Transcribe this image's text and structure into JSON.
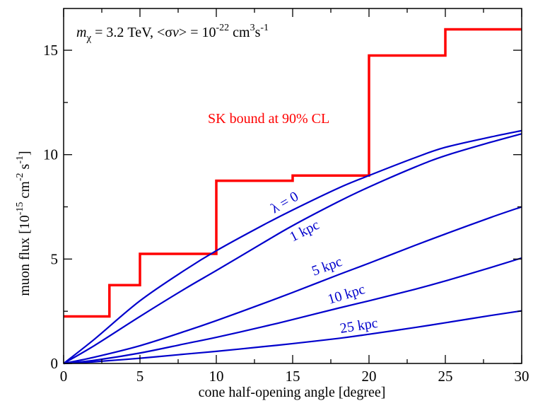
{
  "chart_data": {
    "type": "line",
    "title": "",
    "xlabel": "cone half-opening angle [degree]",
    "ylabel_main": "muon flux  [10",
    "ylabel_exp1": "-15",
    "ylabel_mid": " cm",
    "ylabel_exp2": "-2",
    "ylabel_s": " s",
    "ylabel_exp3": "-1",
    "ylabel_end": "]",
    "xlim": [
      0,
      30
    ],
    "ylim": [
      0,
      17
    ],
    "x_ticks": [
      "0",
      "5",
      "10",
      "15",
      "20",
      "25",
      "30"
    ],
    "y_ticks": [
      "0",
      "5",
      "10",
      "15"
    ],
    "x_tick_values": [
      0,
      5,
      10,
      15,
      20,
      25,
      30
    ],
    "y_tick_values": [
      0,
      5,
      10,
      15
    ],
    "grid": false,
    "colors": {
      "bound": "#ff0000",
      "curves": "#0000cc",
      "axes": "#000000"
    },
    "annotation": {
      "m_sym": "m",
      "m_sub": "χ",
      "m_text": " = 3.2 TeV,  <σ",
      "v_sym": "v",
      "eq_text": "> = 10",
      "exp_22": "-22",
      "cm_text": " cm",
      "exp_3": "3",
      "s_text": "s",
      "exp_m1": "-1"
    },
    "bound": {
      "label": "SK bound at 90% CL",
      "steps": [
        [
          0,
          2.25
        ],
        [
          3,
          2.25
        ],
        [
          3,
          3.75
        ],
        [
          5,
          3.75
        ],
        [
          5,
          5.25
        ],
        [
          10,
          5.25
        ],
        [
          10,
          8.75
        ],
        [
          15,
          8.75
        ],
        [
          15,
          9.0
        ],
        [
          20,
          9.0
        ],
        [
          20,
          14.75
        ],
        [
          25,
          14.75
        ],
        [
          25,
          16.0
        ],
        [
          30,
          16.0
        ]
      ]
    },
    "series": [
      {
        "name": "λ = 0",
        "x": [
          0,
          2,
          5,
          8,
          10,
          13,
          15,
          18,
          20,
          23,
          25,
          28,
          30
        ],
        "y": [
          0,
          1.15,
          3.0,
          4.5,
          5.4,
          6.6,
          7.35,
          8.4,
          9.0,
          9.85,
          10.35,
          10.85,
          11.15
        ]
      },
      {
        "name": "1 kpc",
        "x": [
          0,
          2,
          5,
          8,
          10,
          13,
          15,
          18,
          20,
          23,
          25,
          28,
          30
        ],
        "y": [
          0,
          0.85,
          2.25,
          3.6,
          4.45,
          5.75,
          6.6,
          7.75,
          8.45,
          9.4,
          9.95,
          10.6,
          11.0
        ]
      },
      {
        "name": "5 kpc",
        "x": [
          0,
          2,
          5,
          8,
          10,
          13,
          15,
          18,
          20,
          23,
          25,
          28,
          30
        ],
        "y": [
          0,
          0.3,
          0.85,
          1.55,
          2.05,
          2.85,
          3.4,
          4.25,
          4.8,
          5.65,
          6.2,
          7.0,
          7.5
        ]
      },
      {
        "name": "10 kpc",
        "x": [
          0,
          2,
          5,
          8,
          10,
          13,
          15,
          18,
          20,
          23,
          25,
          28,
          30
        ],
        "y": [
          0,
          0.15,
          0.5,
          0.95,
          1.25,
          1.75,
          2.1,
          2.65,
          3.0,
          3.55,
          3.95,
          4.6,
          5.05
        ]
      },
      {
        "name": "25 kpc",
        "x": [
          0,
          2,
          5,
          8,
          10,
          13,
          15,
          18,
          20,
          23,
          25,
          28,
          30
        ],
        "y": [
          0,
          0.08,
          0.25,
          0.45,
          0.58,
          0.8,
          0.95,
          1.2,
          1.4,
          1.72,
          1.95,
          2.3,
          2.52
        ]
      }
    ]
  }
}
